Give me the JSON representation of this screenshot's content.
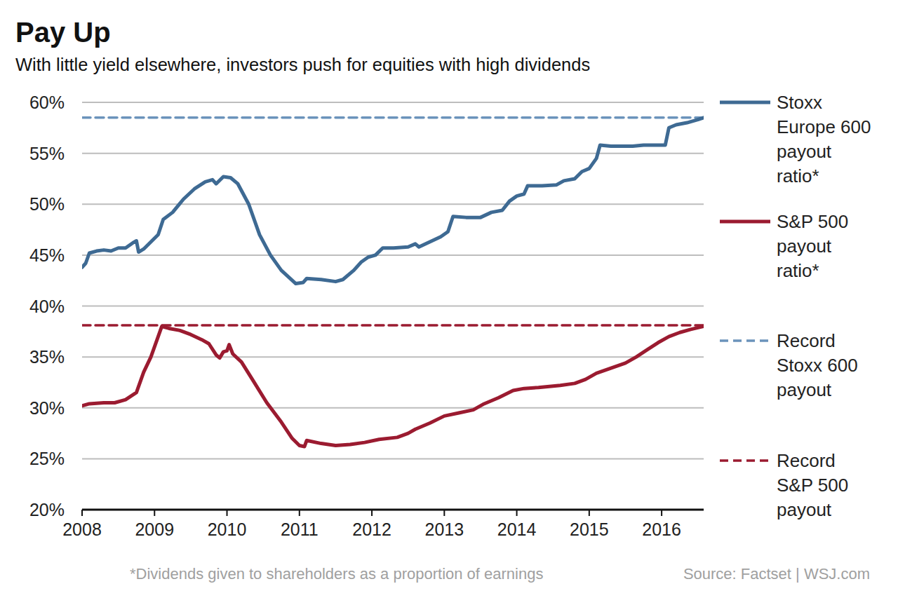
{
  "chart_data": {
    "type": "line",
    "title": "Pay Up",
    "subtitle": "With little yield elsewhere, investors push for equities with high dividends",
    "note": "*Dividends given to shareholders as a proportion of earnings",
    "source": "Source: Factset | WSJ.com",
    "xlim": [
      2008,
      2016.58
    ],
    "xticks": [
      2008,
      2009,
      2010,
      2011,
      2012,
      2013,
      2014,
      2015,
      2016
    ],
    "ylim": [
      20,
      60
    ],
    "yticks": [
      {
        "value": 20,
        "label": "20%"
      },
      {
        "value": 25,
        "label": "25%"
      },
      {
        "value": 30,
        "label": "30%"
      },
      {
        "value": 35,
        "label": "35%"
      },
      {
        "value": 40,
        "label": "40%"
      },
      {
        "value": 45,
        "label": "45%"
      },
      {
        "value": 50,
        "label": "50%"
      },
      {
        "value": 55,
        "label": "55%"
      },
      {
        "value": 60,
        "label": "60%"
      }
    ],
    "grid": true,
    "legend": "right",
    "series": [
      {
        "name": "Stoxx Europe 600 payout ratio*",
        "color": "#3e6a93",
        "line_style": "solid",
        "x": [
          2008.0,
          2008.05,
          2008.1,
          2008.2,
          2008.3,
          2008.4,
          2008.5,
          2008.6,
          2008.7,
          2008.75,
          2008.78,
          2008.85,
          2008.95,
          2009.05,
          2009.12,
          2009.25,
          2009.4,
          2009.55,
          2009.7,
          2009.8,
          2009.85,
          2009.95,
          2010.05,
          2010.15,
          2010.3,
          2010.45,
          2010.6,
          2010.75,
          2010.95,
          2011.05,
          2011.1,
          2011.3,
          2011.5,
          2011.6,
          2011.75,
          2011.85,
          2011.95,
          2012.05,
          2012.15,
          2012.3,
          2012.5,
          2012.6,
          2012.65,
          2012.8,
          2012.95,
          2013.05,
          2013.12,
          2013.3,
          2013.5,
          2013.65,
          2013.8,
          2013.9,
          2014.0,
          2014.1,
          2014.15,
          2014.35,
          2014.55,
          2014.65,
          2014.8,
          2014.9,
          2015.0,
          2015.1,
          2015.15,
          2015.3,
          2015.5,
          2015.6,
          2015.75,
          2015.95,
          2016.05,
          2016.1,
          2016.2,
          2016.35,
          2016.5,
          2016.58
        ],
        "values": [
          43.8,
          44.2,
          45.2,
          45.4,
          45.5,
          45.4,
          45.7,
          45.7,
          46.2,
          46.4,
          45.3,
          45.6,
          46.3,
          47.0,
          48.5,
          49.2,
          50.5,
          51.5,
          52.2,
          52.4,
          52.0,
          52.7,
          52.6,
          52.0,
          50.0,
          47.0,
          45.0,
          43.5,
          42.2,
          42.3,
          42.7,
          42.6,
          42.4,
          42.6,
          43.5,
          44.3,
          44.8,
          45.0,
          45.7,
          45.7,
          45.8,
          46.1,
          45.8,
          46.3,
          46.8,
          47.3,
          48.8,
          48.7,
          48.7,
          49.2,
          49.4,
          50.3,
          50.8,
          51.0,
          51.8,
          51.8,
          51.9,
          52.3,
          52.5,
          53.2,
          53.5,
          54.5,
          55.8,
          55.7,
          55.7,
          55.7,
          55.8,
          55.8,
          55.8,
          57.5,
          57.8,
          58.0,
          58.3,
          58.5
        ]
      },
      {
        "name": "S&P 500 payout ratio*",
        "color": "#9b1b30",
        "line_style": "solid",
        "x": [
          2008.0,
          2008.1,
          2008.3,
          2008.45,
          2008.6,
          2008.75,
          2008.85,
          2008.95,
          2009.05,
          2009.1,
          2009.2,
          2009.35,
          2009.5,
          2009.65,
          2009.75,
          2009.85,
          2009.9,
          2009.95,
          2010.0,
          2010.03,
          2010.08,
          2010.2,
          2010.35,
          2010.55,
          2010.75,
          2010.9,
          2011.0,
          2011.07,
          2011.1,
          2011.3,
          2011.5,
          2011.7,
          2011.9,
          2012.1,
          2012.35,
          2012.5,
          2012.6,
          2012.8,
          2013.0,
          2013.2,
          2013.4,
          2013.55,
          2013.75,
          2013.95,
          2014.1,
          2014.3,
          2014.6,
          2014.8,
          2014.95,
          2015.1,
          2015.3,
          2015.5,
          2015.65,
          2015.8,
          2015.95,
          2016.1,
          2016.25,
          2016.4,
          2016.58
        ],
        "values": [
          30.2,
          30.4,
          30.5,
          30.5,
          30.8,
          31.5,
          33.5,
          35.0,
          37.0,
          38.0,
          37.8,
          37.6,
          37.2,
          36.7,
          36.3,
          35.2,
          34.9,
          35.5,
          35.6,
          36.2,
          35.3,
          34.5,
          32.8,
          30.5,
          28.6,
          27.0,
          26.3,
          26.2,
          26.8,
          26.5,
          26.3,
          26.4,
          26.6,
          26.9,
          27.1,
          27.5,
          27.9,
          28.5,
          29.2,
          29.5,
          29.8,
          30.4,
          31.0,
          31.7,
          31.9,
          32.0,
          32.2,
          32.4,
          32.8,
          33.4,
          33.9,
          34.4,
          35.0,
          35.7,
          36.4,
          37.0,
          37.4,
          37.7,
          38.0
        ]
      },
      {
        "name": "Record Stoxx 600 payout",
        "color": "#6b93bb",
        "line_style": "dashed",
        "x": [
          2008,
          2016.58
        ],
        "values": [
          58.5,
          58.5
        ]
      },
      {
        "name": "Record S&P 500 payout",
        "color": "#9b1b30",
        "line_style": "dashed",
        "x": [
          2008,
          2016.58
        ],
        "values": [
          38.1,
          38.1
        ]
      }
    ]
  }
}
